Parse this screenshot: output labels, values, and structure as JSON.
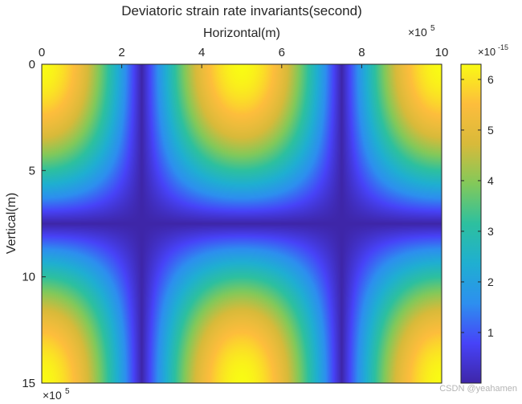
{
  "chart_data": {
    "type": "heatmap",
    "title": "Deviatoric strain rate invariants(second)",
    "xlabel": "Horizontal(m)",
    "ylabel": "Vertical(m)",
    "x_axis_location": "top",
    "y_axis_direction": "reversed",
    "xlim": [
      0,
      10
    ],
    "ylim": [
      0,
      15
    ],
    "x_exponent_label": "×10",
    "x_exponent": "5",
    "y_exponent_label": "×10",
    "y_exponent": "5",
    "x_ticks": [
      0,
      2,
      4,
      6,
      8,
      10
    ],
    "y_ticks": [
      0,
      5,
      10,
      15
    ],
    "colorbar": {
      "label_exponent_base": "×10",
      "label_exponent": "-15",
      "ticks": [
        1,
        2,
        3,
        4,
        5,
        6
      ],
      "range": [
        0,
        6.3
      ],
      "colormap": "parula",
      "colormap_stops": [
        "#3e26a8",
        "#4743f8",
        "#2d8fef",
        "#1fafd1",
        "#2dc09f",
        "#82c95a",
        "#d8ba3a",
        "#fdbd3c",
        "#f9fb14"
      ]
    },
    "field": {
      "description": "value = 6.3 * |cos(pi*x/5)| * |cos(pi*y/15)|",
      "max_value": 6.3,
      "x_period": 5,
      "y_period": 15
    }
  },
  "watermark": "CSDN @yeahamen"
}
